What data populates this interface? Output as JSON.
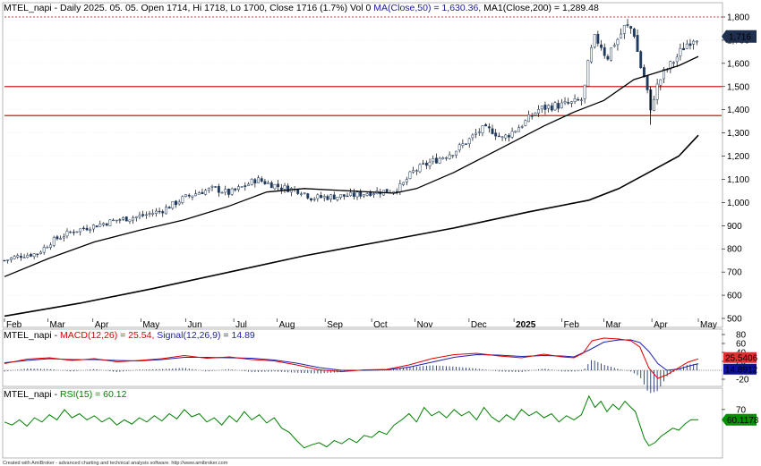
{
  "chart_data": [
    {
      "type": "candlestick",
      "header": {
        "symbol": "MTEL_napi",
        "ohlc_text": "MTEL_napi - Daily 2025. 05. 05. Open 1714, Hi 1718, Lo 1700, Close 1716 (1.7%) Vol 0",
        "ma50_text": "MA(Close,50) = 1,630.36,",
        "ma200_text": "MA1(Close,200) = 1,289.48"
      },
      "ylim": [
        480,
        1820
      ],
      "y_ticks": [
        "1,800",
        "1,700",
        "1,600",
        "1,500",
        "1,400",
        "1,300",
        "1,200",
        "1,100",
        "1,000",
        "900",
        "800",
        "700",
        "600",
        "500"
      ],
      "y_tick_values": [
        1800,
        1700,
        1600,
        1500,
        1400,
        1300,
        1200,
        1100,
        1000,
        900,
        800,
        700,
        600,
        500
      ],
      "x_ticks": [
        "Feb",
        "Mar",
        "Apr",
        "May",
        "Jun",
        "Jul",
        "Aug",
        "Sep",
        "Oct",
        "Nov",
        "Dec",
        "2025",
        "Feb",
        "Mar",
        "Apr",
        "May"
      ],
      "x_tick_days": [
        0,
        29,
        59,
        91,
        121,
        153,
        182,
        214,
        245,
        274,
        310,
        340,
        372,
        400,
        432,
        463
      ],
      "last_price_label": "1,716",
      "last_price": 1716,
      "horizontal_lines": [
        1800,
        1500,
        1375
      ],
      "candle_anchors": [
        [
          0,
          750
        ],
        [
          10,
          770
        ],
        [
          22,
          780
        ],
        [
          32,
          835
        ],
        [
          45,
          875
        ],
        [
          60,
          900
        ],
        [
          75,
          925
        ],
        [
          90,
          940
        ],
        [
          105,
          965
        ],
        [
          120,
          1020
        ],
        [
          130,
          1045
        ],
        [
          140,
          1060
        ],
        [
          150,
          1040
        ],
        [
          160,
          1070
        ],
        [
          168,
          1100
        ],
        [
          175,
          1085
        ],
        [
          185,
          1065
        ],
        [
          198,
          1050
        ],
        [
          205,
          1020
        ],
        [
          218,
          1025
        ],
        [
          232,
          1030
        ],
        [
          245,
          1045
        ],
        [
          258,
          1050
        ],
        [
          265,
          1070
        ],
        [
          272,
          1130
        ],
        [
          280,
          1160
        ],
        [
          290,
          1190
        ],
        [
          300,
          1220
        ],
        [
          310,
          1270
        ],
        [
          318,
          1315
        ],
        [
          326,
          1310
        ],
        [
          332,
          1275
        ],
        [
          340,
          1310
        ],
        [
          348,
          1350
        ],
        [
          356,
          1400
        ],
        [
          364,
          1415
        ],
        [
          372,
          1420
        ],
        [
          380,
          1430
        ],
        [
          386,
          1445
        ],
        [
          390,
          1620
        ],
        [
          394,
          1710
        ],
        [
          398,
          1680
        ],
        [
          402,
          1620
        ],
        [
          406,
          1680
        ],
        [
          410,
          1710
        ],
        [
          414,
          1760
        ],
        [
          418,
          1750
        ],
        [
          421,
          1720
        ],
        [
          423,
          1620
        ],
        [
          425,
          1575
        ],
        [
          427,
          1540
        ],
        [
          429,
          1480
        ],
        [
          431,
          1380
        ],
        [
          433,
          1450
        ],
        [
          436,
          1510
        ],
        [
          440,
          1560
        ],
        [
          444,
          1590
        ],
        [
          448,
          1620
        ],
        [
          452,
          1660
        ],
        [
          456,
          1690
        ],
        [
          460,
          1710
        ],
        [
          463,
          1716
        ]
      ],
      "series": [
        {
          "name": "MA(Close,50)",
          "points": [
            [
              0,
              680
            ],
            [
              30,
              760
            ],
            [
              60,
              830
            ],
            [
              90,
              880
            ],
            [
              120,
              925
            ],
            [
              150,
              985
            ],
            [
              175,
              1045
            ],
            [
              200,
              1060
            ],
            [
              230,
              1050
            ],
            [
              260,
              1040
            ],
            [
              275,
              1060
            ],
            [
              300,
              1130
            ],
            [
              330,
              1230
            ],
            [
              360,
              1330
            ],
            [
              380,
              1390
            ],
            [
              400,
              1440
            ],
            [
              420,
              1530
            ],
            [
              435,
              1560
            ],
            [
              450,
              1590
            ],
            [
              463,
              1630
            ]
          ]
        },
        {
          "name": "MA1(Close,200)",
          "points": [
            [
              0,
              510
            ],
            [
              50,
              565
            ],
            [
              100,
              630
            ],
            [
              150,
              700
            ],
            [
              200,
              770
            ],
            [
              250,
              830
            ],
            [
              300,
              890
            ],
            [
              350,
              960
            ],
            [
              390,
              1010
            ],
            [
              410,
              1060
            ],
            [
              430,
              1130
            ],
            [
              450,
              1200
            ],
            [
              463,
              1290
            ]
          ]
        }
      ]
    },
    {
      "type": "line",
      "label_prefix": "MTEL_napi -",
      "label": "MACD(12,26) = 25.54,",
      "label2": "Signal(12,26,9) = 14.89",
      "ylim": [
        -32,
        84
      ],
      "y_ticks": [
        "80",
        "60",
        "40",
        "20",
        "-20"
      ],
      "y_tick_values": [
        80,
        60,
        40,
        20,
        -20
      ],
      "last_values": [
        "25.5406",
        "14.8912"
      ],
      "series": [
        {
          "name": "MACD(12,26)",
          "points": [
            [
              0,
              15
            ],
            [
              15,
              25
            ],
            [
              30,
              28
            ],
            [
              45,
              22
            ],
            [
              60,
              26
            ],
            [
              75,
              19
            ],
            [
              90,
              22
            ],
            [
              105,
              26
            ],
            [
              120,
              33
            ],
            [
              135,
              27
            ],
            [
              150,
              30
            ],
            [
              165,
              24
            ],
            [
              180,
              21
            ],
            [
              195,
              12
            ],
            [
              210,
              1
            ],
            [
              225,
              -3
            ],
            [
              240,
              1
            ],
            [
              255,
              2
            ],
            [
              270,
              12
            ],
            [
              285,
              26
            ],
            [
              300,
              35
            ],
            [
              315,
              38
            ],
            [
              330,
              32
            ],
            [
              345,
              28
            ],
            [
              360,
              36
            ],
            [
              372,
              30
            ],
            [
              380,
              28
            ],
            [
              386,
              38
            ],
            [
              392,
              66
            ],
            [
              400,
              72
            ],
            [
              410,
              70
            ],
            [
              418,
              66
            ],
            [
              424,
              52
            ],
            [
              430,
              5
            ],
            [
              436,
              -18
            ],
            [
              442,
              -10
            ],
            [
              450,
              6
            ],
            [
              456,
              18
            ],
            [
              463,
              25.54
            ]
          ]
        },
        {
          "name": "Signal(12,26,9)",
          "points": [
            [
              0,
              17
            ],
            [
              15,
              22
            ],
            [
              30,
              26
            ],
            [
              45,
              24
            ],
            [
              60,
              24
            ],
            [
              75,
              22
            ],
            [
              90,
              21
            ],
            [
              105,
              24
            ],
            [
              120,
              29
            ],
            [
              135,
              29
            ],
            [
              150,
              28
            ],
            [
              165,
              27
            ],
            [
              180,
              23
            ],
            [
              195,
              16
            ],
            [
              210,
              6
            ],
            [
              225,
              0
            ],
            [
              240,
              0
            ],
            [
              255,
              1
            ],
            [
              270,
              7
            ],
            [
              285,
              18
            ],
            [
              300,
              29
            ],
            [
              315,
              35
            ],
            [
              330,
              34
            ],
            [
              345,
              31
            ],
            [
              360,
              33
            ],
            [
              372,
              32
            ],
            [
              380,
              30
            ],
            [
              390,
              45
            ],
            [
              400,
              63
            ],
            [
              410,
              68
            ],
            [
              418,
              68
            ],
            [
              424,
              62
            ],
            [
              430,
              42
            ],
            [
              436,
              15
            ],
            [
              442,
              0
            ],
            [
              450,
              3
            ],
            [
              456,
              9
            ],
            [
              463,
              14.89
            ]
          ]
        }
      ]
    },
    {
      "type": "line",
      "label_prefix": "MTEL_napi -",
      "label": "RSI(15) = 60.12",
      "ylim": [
        25,
        88
      ],
      "y_ticks": [
        "70"
      ],
      "y_tick_values": [
        70
      ],
      "last_value": "60.1178",
      "series": [
        {
          "name": "RSI(15)",
          "points": [
            [
              0,
              58
            ],
            [
              5,
              55
            ],
            [
              10,
              60
            ],
            [
              15,
              54
            ],
            [
              20,
              62
            ],
            [
              25,
              58
            ],
            [
              30,
              65
            ],
            [
              35,
              60
            ],
            [
              40,
              70
            ],
            [
              45,
              62
            ],
            [
              50,
              66
            ],
            [
              55,
              60
            ],
            [
              60,
              64
            ],
            [
              65,
              58
            ],
            [
              70,
              62
            ],
            [
              75,
              55
            ],
            [
              80,
              60
            ],
            [
              85,
              56
            ],
            [
              90,
              62
            ],
            [
              95,
              58
            ],
            [
              100,
              64
            ],
            [
              105,
              59
            ],
            [
              110,
              66
            ],
            [
              115,
              61
            ],
            [
              120,
              70
            ],
            [
              125,
              63
            ],
            [
              130,
              66
            ],
            [
              135,
              58
            ],
            [
              140,
              62
            ],
            [
              145,
              55
            ],
            [
              150,
              64
            ],
            [
              155,
              58
            ],
            [
              160,
              68
            ],
            [
              165,
              60
            ],
            [
              170,
              65
            ],
            [
              175,
              57
            ],
            [
              180,
              62
            ],
            [
              185,
              52
            ],
            [
              190,
              48
            ],
            [
              195,
              40
            ],
            [
              200,
              33
            ],
            [
              205,
              36
            ],
            [
              210,
              38
            ],
            [
              215,
              34
            ],
            [
              220,
              40
            ],
            [
              225,
              37
            ],
            [
              230,
              42
            ],
            [
              235,
              38
            ],
            [
              240,
              45
            ],
            [
              245,
              43
            ],
            [
              250,
              49
            ],
            [
              255,
              46
            ],
            [
              260,
              55
            ],
            [
              265,
              60
            ],
            [
              270,
              66
            ],
            [
              275,
              58
            ],
            [
              280,
              72
            ],
            [
              285,
              64
            ],
            [
              290,
              68
            ],
            [
              295,
              62
            ],
            [
              300,
              70
            ],
            [
              305,
              64
            ],
            [
              310,
              68
            ],
            [
              315,
              60
            ],
            [
              320,
              72
            ],
            [
              325,
              63
            ],
            [
              330,
              58
            ],
            [
              335,
              65
            ],
            [
              340,
              60
            ],
            [
              345,
              70
            ],
            [
              350,
              64
            ],
            [
              355,
              68
            ],
            [
              360,
              62
            ],
            [
              365,
              66
            ],
            [
              370,
              58
            ],
            [
              375,
              64
            ],
            [
              380,
              60
            ],
            [
              385,
              65
            ],
            [
              390,
              83
            ],
            [
              394,
              72
            ],
            [
              398,
              78
            ],
            [
              402,
              68
            ],
            [
              406,
              75
            ],
            [
              410,
              70
            ],
            [
              414,
              78
            ],
            [
              418,
              72
            ],
            [
              421,
              68
            ],
            [
              424,
              55
            ],
            [
              427,
              42
            ],
            [
              430,
              35
            ],
            [
              434,
              38
            ],
            [
              438,
              44
            ],
            [
              442,
              48
            ],
            [
              446,
              52
            ],
            [
              450,
              50
            ],
            [
              454,
              56
            ],
            [
              458,
              60
            ],
            [
              463,
              60.12
            ]
          ]
        }
      ]
    }
  ],
  "footer": "Created with AmiBroker - advanced charting and technical analysis software. http://www.amibroker.com",
  "colors": {
    "price_line": "#000000",
    "ma50": "#000000",
    "ma200": "#000000",
    "hline": "#c00000",
    "hline_top": "#c00000",
    "macd": "#e00000",
    "signal": "#2020b0",
    "histogram": "#000000",
    "rsi": "#008000",
    "label_bg": "#1f2f4f",
    "macd_badge_bg": "#e03030",
    "signal_badge_bg": "#1010a0",
    "rsi_badge_bg": "#009000"
  }
}
